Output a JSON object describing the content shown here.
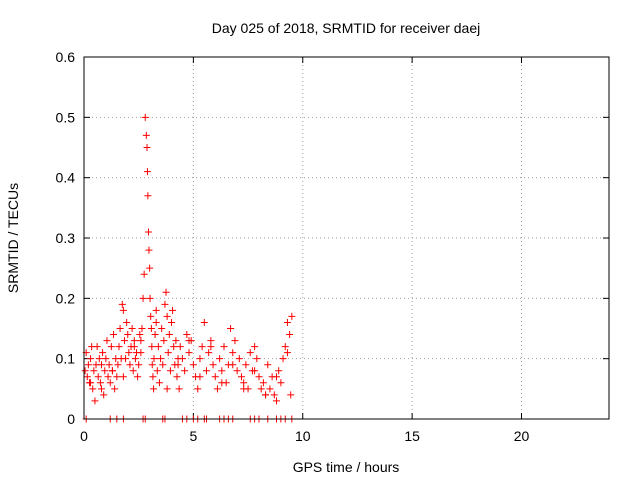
{
  "chart_data": {
    "type": "scatter",
    "title": "Day 025 of 2018, SRMTID for receiver daej",
    "xlabel": "GPS time / hours",
    "ylabel": "SRMTID / TECUs",
    "xlim": [
      0,
      24
    ],
    "ylim": [
      0,
      0.6
    ],
    "x_ticks": [
      0,
      5,
      10,
      15,
      20
    ],
    "x_tick_labels": [
      "0",
      "5",
      "10",
      "15",
      "20"
    ],
    "y_ticks": [
      0,
      0.1,
      0.2,
      0.3,
      0.4,
      0.5,
      0.6
    ],
    "y_tick_labels": [
      "0",
      "0.1",
      "0.2",
      "0.3",
      "0.4",
      "0.5",
      "0.6"
    ],
    "grid": true,
    "marker": "plus",
    "color": "#ff0000",
    "series": [
      {
        "name": "SRMTID",
        "x": [
          0.05,
          0.1,
          0.15,
          0.2,
          0.25,
          0.3,
          0.35,
          0.4,
          0.45,
          0.5,
          0.55,
          0.6,
          0.65,
          0.7,
          0.75,
          0.8,
          0.85,
          0.9,
          0.95,
          1.0,
          1.05,
          1.1,
          1.15,
          1.2,
          1.25,
          1.3,
          1.35,
          1.4,
          1.45,
          1.5,
          1.55,
          1.6,
          1.65,
          1.7,
          1.75,
          1.8,
          1.85,
          1.9,
          1.95,
          2.0,
          2.05,
          2.1,
          2.15,
          2.2,
          2.25,
          2.3,
          2.35,
          2.4,
          2.45,
          2.5,
          2.55,
          2.6,
          2.65,
          2.7,
          2.75,
          2.8,
          2.85,
          2.88,
          2.9,
          2.92,
          2.95,
          2.97,
          3.0,
          3.02,
          3.05,
          3.08,
          3.1,
          3.12,
          3.15,
          3.18,
          3.2,
          3.25,
          3.3,
          3.35,
          3.4,
          3.45,
          3.5,
          3.55,
          3.6,
          3.65,
          3.7,
          3.75,
          3.8,
          3.85,
          3.9,
          3.95,
          4.0,
          4.05,
          4.1,
          4.15,
          4.2,
          4.25,
          4.3,
          4.35,
          4.4,
          4.5,
          4.6,
          4.7,
          4.8,
          4.9,
          5.0,
          5.1,
          5.2,
          5.3,
          5.4,
          5.5,
          5.6,
          5.7,
          5.8,
          5.9,
          6.0,
          6.1,
          6.2,
          6.3,
          6.4,
          6.5,
          6.6,
          6.7,
          6.8,
          6.9,
          7.0,
          7.1,
          7.2,
          7.3,
          7.4,
          7.5,
          7.6,
          7.7,
          7.8,
          7.9,
          8.0,
          8.1,
          8.2,
          8.3,
          8.4,
          8.5,
          8.6,
          8.7,
          8.8,
          8.9,
          9.0,
          9.1,
          9.2,
          9.3,
          9.4,
          9.5,
          0.3,
          0.8,
          1.3,
          1.8,
          2.3,
          2.6,
          3.3,
          3.8,
          4.3,
          4.8,
          5.3,
          5.8,
          6.3,
          6.8,
          7.3,
          7.8,
          8.3,
          8.8,
          9.3,
          9.45
        ],
        "y": [
          0.08,
          0.11,
          0.07,
          0.09,
          0.06,
          0.1,
          0.12,
          0.05,
          0.08,
          0.03,
          0.09,
          0.12,
          0.07,
          0.1,
          0.06,
          0.09,
          0.11,
          0.04,
          0.08,
          0.1,
          0.13,
          0.07,
          0.09,
          0.06,
          0.12,
          0.08,
          0.14,
          0.05,
          0.1,
          0.07,
          0.09,
          0.12,
          0.15,
          0.1,
          0.19,
          0.18,
          0.13,
          0.1,
          0.16,
          0.14,
          0.11,
          0.09,
          0.12,
          0.15,
          0.08,
          0.13,
          0.1,
          0.11,
          0.07,
          0.09,
          0.14,
          0.13,
          0.15,
          0.2,
          0.24,
          0.5,
          0.47,
          0.45,
          0.41,
          0.37,
          0.31,
          0.28,
          0.25,
          0.2,
          0.17,
          0.15,
          0.12,
          0.09,
          0.07,
          0.05,
          0.1,
          0.14,
          0.18,
          0.08,
          0.12,
          0.06,
          0.1,
          0.15,
          0.09,
          0.13,
          0.19,
          0.21,
          0.17,
          0.11,
          0.14,
          0.08,
          0.16,
          0.18,
          0.12,
          0.09,
          0.13,
          0.07,
          0.1,
          0.05,
          0.12,
          0.1,
          0.08,
          0.14,
          0.11,
          0.13,
          0.09,
          0.07,
          0.05,
          0.1,
          0.12,
          0.16,
          0.08,
          0.11,
          0.13,
          0.09,
          0.07,
          0.05,
          0.1,
          0.08,
          0.12,
          0.06,
          0.09,
          0.15,
          0.11,
          0.13,
          0.08,
          0.1,
          0.07,
          0.06,
          0.09,
          0.05,
          0.11,
          0.08,
          0.12,
          0.1,
          0.07,
          0.05,
          0.06,
          0.04,
          0.09,
          0.05,
          0.07,
          0.04,
          0.03,
          0.08,
          0.06,
          0.1,
          0.12,
          0.16,
          0.14,
          0.17,
          0.06,
          0.05,
          0.08,
          0.07,
          0.12,
          0.11,
          0.16,
          0.05,
          0.09,
          0.13,
          0.07,
          0.12,
          0.06,
          0.09,
          0.05,
          0.08,
          0.04,
          0.07,
          0.11,
          0.04
        ],
        "zero_x": [
          0.1,
          1.2,
          1.5,
          1.8,
          2.7,
          2.8,
          3.6,
          3.7,
          4.5,
          4.7,
          5.0,
          5.2,
          5.5,
          5.6,
          6.2,
          6.4,
          6.6,
          6.8,
          7.6,
          7.8,
          8.0,
          8.4,
          8.8,
          9.0,
          9.2,
          9.5
        ]
      }
    ]
  }
}
